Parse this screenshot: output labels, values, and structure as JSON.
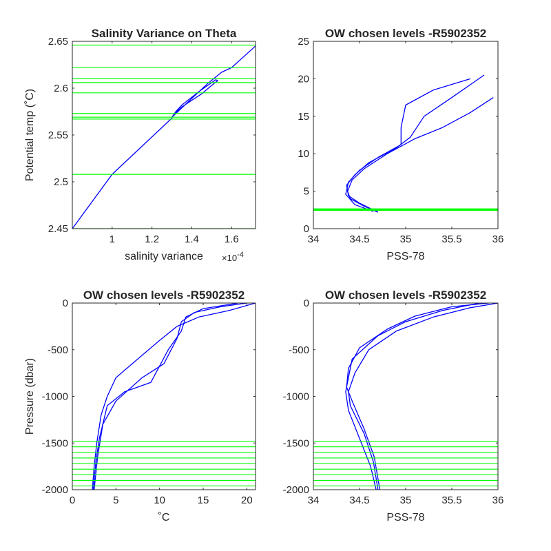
{
  "figure": {
    "background": "#ffffff",
    "axis_color": "#262626",
    "level_color": "#00ff00",
    "profile_color": "#0000ff"
  },
  "chart_data": [
    {
      "type": "line",
      "title": "Salinity Variance on Theta",
      "xlabel": "salinity variance",
      "x_exponent_label": "×10",
      "x_exponent": "-4",
      "ylabel": "Potential temp (˚C)",
      "xlim": [
        0.8,
        1.72
      ],
      "ylim": [
        2.45,
        2.65
      ],
      "xticks": [
        1,
        1.2,
        1.4,
        1.6
      ],
      "xticklabels": [
        "1",
        "1.2",
        "1.4",
        "1.6"
      ],
      "yticks": [
        2.45,
        2.5,
        2.55,
        2.6,
        2.65
      ],
      "yticklabels": [
        "2.45",
        "2.5",
        "2.55",
        "2.6",
        "2.65"
      ],
      "series": [
        {
          "x": [
            0.8,
            1.0,
            1.3,
            1.31,
            1.35,
            1.45,
            1.5,
            1.53,
            1.52,
            1.44,
            1.35,
            1.32,
            1.3,
            1.38,
            1.48,
            1.55,
            1.6,
            1.72
          ],
          "y": [
            2.45,
            2.508,
            2.568,
            2.572,
            2.58,
            2.594,
            2.603,
            2.608,
            2.609,
            2.597,
            2.582,
            2.575,
            2.569,
            2.585,
            2.605,
            2.617,
            2.622,
            2.645
          ]
        }
      ],
      "hlines": [
        2.45,
        2.508,
        2.567,
        2.569,
        2.573,
        2.595,
        2.606,
        2.61,
        2.622,
        2.646
      ]
    },
    {
      "type": "line",
      "title": "OW chosen levels -R5902352",
      "xlabel": "PSS-78",
      "ylabel": "",
      "xlim": [
        34,
        36
      ],
      "ylim": [
        0,
        25
      ],
      "xticks": [
        34,
        34.5,
        35,
        35.5,
        36
      ],
      "xticklabels": [
        "34",
        "34.5",
        "35",
        "35.5",
        "36"
      ],
      "yticks": [
        0,
        5,
        10,
        15,
        20,
        25
      ],
      "yticklabels": [
        "0",
        "5",
        "10",
        "15",
        "20",
        "25"
      ],
      "series": [
        {
          "x": [
            34.7,
            34.55,
            34.4,
            34.37,
            34.42,
            34.55,
            34.8,
            35.1,
            35.4,
            35.7,
            35.95
          ],
          "y": [
            2.2,
            3.0,
            4.0,
            5.0,
            6.5,
            8.0,
            10.0,
            12.0,
            13.5,
            15.5,
            17.5
          ]
        },
        {
          "x": [
            34.7,
            34.5,
            34.38,
            34.36,
            34.45,
            34.6,
            34.9,
            35.05,
            35.2,
            35.5,
            35.85
          ],
          "y": [
            2.2,
            3.4,
            4.4,
            5.8,
            7.2,
            8.8,
            10.8,
            12.2,
            15.0,
            17.5,
            20.5
          ]
        },
        {
          "x": [
            34.65,
            34.45,
            34.35,
            34.38,
            34.5,
            34.7,
            34.95,
            34.95,
            35.0,
            35.3,
            35.7
          ],
          "y": [
            2.3,
            3.2,
            4.6,
            6.2,
            7.8,
            9.5,
            11.2,
            13.5,
            16.5,
            18.5,
            20.0
          ]
        }
      ],
      "hlines": [
        2.45,
        2.51,
        2.57,
        2.6,
        2.62,
        2.65
      ]
    },
    {
      "type": "line",
      "title": "OW chosen levels -R5902352",
      "xlabel": "˚C",
      "ylabel": "Pressure (dbar)",
      "xlim": [
        0,
        21
      ],
      "ylim": [
        -2000,
        0
      ],
      "xticks": [
        0,
        5,
        10,
        15,
        20
      ],
      "xticklabels": [
        "0",
        "5",
        "10",
        "15",
        "20"
      ],
      "yticks": [
        -2000,
        -1500,
        -1000,
        -500,
        0
      ],
      "yticklabels": [
        "-2000",
        "-1500",
        "-1000",
        "-500",
        "0"
      ],
      "series": [
        {
          "x": [
            2.3,
            2.5,
            2.8,
            3.3,
            4.0,
            5.0,
            7.5,
            10.0,
            12.0,
            14.5,
            18.0,
            21.0
          ],
          "y": [
            -2000,
            -1750,
            -1500,
            -1200,
            -1000,
            -800,
            -600,
            -400,
            -250,
            -150,
            -80,
            0
          ]
        },
        {
          "x": [
            2.4,
            2.7,
            3.1,
            4.0,
            6.0,
            9.0,
            11.0,
            12.5,
            13.0,
            15.0,
            19.0
          ],
          "y": [
            -2000,
            -1700,
            -1450,
            -1100,
            -950,
            -850,
            -500,
            -300,
            -150,
            -60,
            0
          ]
        },
        {
          "x": [
            2.5,
            2.9,
            3.5,
            5.0,
            8.0,
            10.5,
            12.0,
            12.5,
            14.0,
            17.0,
            20.0
          ],
          "y": [
            -2000,
            -1650,
            -1300,
            -1050,
            -800,
            -650,
            -380,
            -200,
            -100,
            -40,
            0
          ]
        }
      ],
      "hlines": [
        -1480,
        -1540,
        -1600,
        -1660,
        -1720,
        -1780,
        -1840,
        -1900,
        -1960
      ]
    },
    {
      "type": "line",
      "title": "OW chosen levels -R5902352",
      "xlabel": "PSS-78",
      "ylabel": "",
      "xlim": [
        34,
        36
      ],
      "ylim": [
        -2000,
        0
      ],
      "xticks": [
        34,
        34.5,
        35,
        35.5,
        36
      ],
      "xticklabels": [
        "34",
        "34.5",
        "35",
        "35.5",
        "36"
      ],
      "yticks": [
        -2000,
        -1500,
        -1000,
        -500,
        0
      ],
      "yticklabels": [
        "-2000",
        "-1500",
        "-1000",
        "-500",
        "0"
      ],
      "series": [
        {
          "x": [
            34.7,
            34.65,
            34.55,
            34.4,
            34.38,
            34.45,
            34.6,
            34.9,
            35.3,
            35.7,
            36.0
          ],
          "y": [
            -2000,
            -1700,
            -1400,
            -1100,
            -950,
            -750,
            -500,
            -300,
            -150,
            -50,
            0
          ]
        },
        {
          "x": [
            34.72,
            34.66,
            34.55,
            34.42,
            34.36,
            34.38,
            34.5,
            34.8,
            35.1,
            35.5,
            35.9
          ],
          "y": [
            -2000,
            -1650,
            -1350,
            -1050,
            -900,
            -700,
            -480,
            -280,
            -140,
            -40,
            0
          ]
        },
        {
          "x": [
            34.68,
            34.62,
            34.5,
            34.38,
            34.35,
            34.42,
            34.7,
            35.0,
            35.4,
            35.8
          ],
          "y": [
            -2000,
            -1750,
            -1450,
            -1150,
            -950,
            -600,
            -350,
            -200,
            -80,
            0
          ]
        }
      ],
      "hlines": [
        -1480,
        -1540,
        -1600,
        -1660,
        -1720,
        -1780,
        -1840,
        -1900,
        -1960
      ]
    }
  ]
}
